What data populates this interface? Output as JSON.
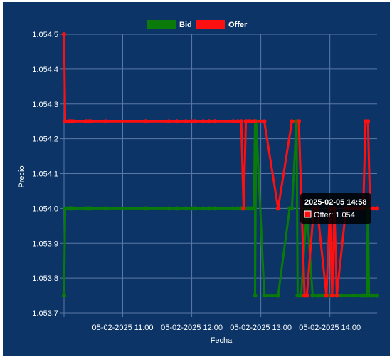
{
  "chart_data": {
    "type": "line",
    "xlabel": "Fecha",
    "ylabel": "Precio",
    "ylim": [
      1.0537,
      1.0545
    ],
    "y_ticks": [
      "1.054,5",
      "1.054,4",
      "1.054,3",
      "1.054,2",
      "1.054,1",
      "1.054,0",
      "1.053,9",
      "1.053,8",
      "1.053,7"
    ],
    "x_ticks": [
      {
        "label": "05-02-2025 11:00",
        "t": "11:00"
      },
      {
        "label": "05-02-2025 12:00",
        "t": "12:00"
      },
      {
        "label": "05-02-2025 13:00",
        "t": "13:00"
      },
      {
        "label": "05-02-2025 14:00",
        "t": "14:00"
      }
    ],
    "legend_position": "top-center",
    "grid": true,
    "colors": {
      "background": "#0c3466",
      "grid": "#5a78a6",
      "text": "#ffffff",
      "bid": "#0a7a0a",
      "offer": "#ff1010"
    },
    "series": [
      {
        "name": "Bid",
        "points": [
          [
            "10:09",
            1.05375
          ],
          [
            "10:10",
            1.054
          ],
          [
            "10:13",
            1.054
          ],
          [
            "10:15",
            1.054
          ],
          [
            "10:17",
            1.054
          ],
          [
            "10:28",
            1.054
          ],
          [
            "10:30",
            1.054
          ],
          [
            "10:32",
            1.054
          ],
          [
            "10:45",
            1.054
          ],
          [
            "11:20",
            1.054
          ],
          [
            "11:40",
            1.054
          ],
          [
            "11:47",
            1.054
          ],
          [
            "11:55",
            1.054
          ],
          [
            "12:00",
            1.054
          ],
          [
            "12:03",
            1.054
          ],
          [
            "12:10",
            1.054
          ],
          [
            "12:15",
            1.054
          ],
          [
            "12:20",
            1.054
          ],
          [
            "12:36",
            1.054
          ],
          [
            "12:40",
            1.054
          ],
          [
            "12:43",
            1.054
          ],
          [
            "12:49",
            1.054
          ],
          [
            "12:51",
            1.054
          ],
          [
            "12:53",
            1.054
          ],
          [
            "12:54",
            1.054
          ],
          [
            "12:55",
            1.05425
          ],
          [
            "12:55",
            1.05375
          ],
          [
            "12:56",
            1.05425
          ],
          [
            "13:03",
            1.05375
          ],
          [
            "13:15",
            1.05375
          ],
          [
            "13:25",
            1.054
          ],
          [
            "13:27",
            1.054
          ],
          [
            "13:31",
            1.05425
          ],
          [
            "13:32",
            1.05375
          ],
          [
            "13:35",
            1.05375
          ],
          [
            "13:40",
            1.054
          ],
          [
            "13:45",
            1.05375
          ],
          [
            "13:50",
            1.05375
          ],
          [
            "13:55",
            1.05375
          ],
          [
            "14:00",
            1.05375
          ],
          [
            "14:10",
            1.05375
          ],
          [
            "14:21",
            1.05375
          ],
          [
            "14:28",
            1.05375
          ],
          [
            "14:30",
            1.05375
          ],
          [
            "14:32",
            1.05375
          ],
          [
            "14:33",
            1.054
          ],
          [
            "14:34",
            1.05375
          ],
          [
            "14:36",
            1.05375
          ],
          [
            "14:38",
            1.05375
          ],
          [
            "14:41",
            1.05375
          ]
        ]
      },
      {
        "name": "Offer",
        "points": [
          [
            "10:09",
            1.0545
          ],
          [
            "10:10",
            1.05425
          ],
          [
            "10:13",
            1.05425
          ],
          [
            "10:15",
            1.05425
          ],
          [
            "10:17",
            1.05425
          ],
          [
            "10:28",
            1.05425
          ],
          [
            "10:30",
            1.05425
          ],
          [
            "10:32",
            1.05425
          ],
          [
            "10:45",
            1.05425
          ],
          [
            "11:20",
            1.05425
          ],
          [
            "11:40",
            1.05425
          ],
          [
            "11:47",
            1.05425
          ],
          [
            "11:55",
            1.05425
          ],
          [
            "12:00",
            1.05425
          ],
          [
            "12:03",
            1.05425
          ],
          [
            "12:10",
            1.05425
          ],
          [
            "12:15",
            1.05425
          ],
          [
            "12:20",
            1.05425
          ],
          [
            "12:36",
            1.05425
          ],
          [
            "12:40",
            1.05425
          ],
          [
            "12:43",
            1.05425
          ],
          [
            "12:45",
            1.054
          ],
          [
            "12:47",
            1.05425
          ],
          [
            "12:49",
            1.05425
          ],
          [
            "12:51",
            1.05425
          ],
          [
            "12:54",
            1.05425
          ],
          [
            "12:55",
            1.05425
          ],
          [
            "13:03",
            1.05425
          ],
          [
            "13:15",
            1.054
          ],
          [
            "13:27",
            1.05425
          ],
          [
            "13:33",
            1.05425
          ],
          [
            "13:38",
            1.05375
          ],
          [
            "13:40",
            1.05375
          ],
          [
            "13:46",
            1.054
          ],
          [
            "13:49",
            1.054
          ],
          [
            "13:57",
            1.05375
          ],
          [
            "14:00",
            1.054
          ],
          [
            "14:02",
            1.05375
          ],
          [
            "14:04",
            1.054
          ],
          [
            "14:06",
            1.05375
          ],
          [
            "14:14",
            1.054
          ],
          [
            "14:22",
            1.054
          ],
          [
            "14:29",
            1.054
          ],
          [
            "14:31",
            1.05425
          ],
          [
            "14:33",
            1.05425
          ],
          [
            "14:35",
            1.054
          ],
          [
            "14:38",
            1.054
          ],
          [
            "14:41",
            1.054
          ]
        ]
      }
    ],
    "tooltip": {
      "title": "2025-02-05 14:58",
      "label": "Offer: 1.054",
      "series": "Offer"
    }
  }
}
